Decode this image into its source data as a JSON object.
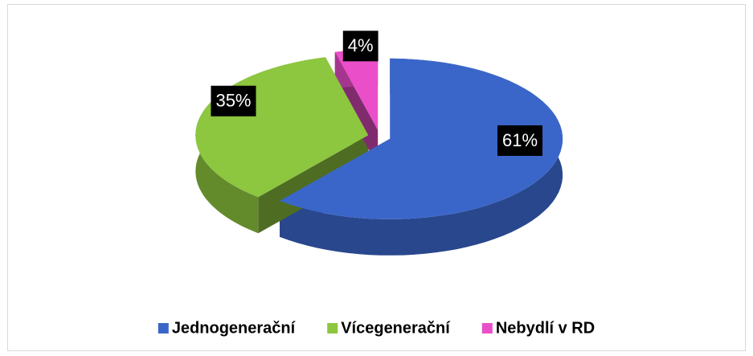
{
  "chart_data": {
    "type": "pie",
    "categories": [
      "Jednogenerační",
      "Vícegenerační",
      "Nebydlí v RD"
    ],
    "values": [
      61,
      35,
      4
    ],
    "value_labels": [
      "61%",
      "35%",
      "4%"
    ],
    "colors": [
      "#3b66c9",
      "#8dc63f",
      "#ea4fc9"
    ],
    "legend": "bottom"
  }
}
